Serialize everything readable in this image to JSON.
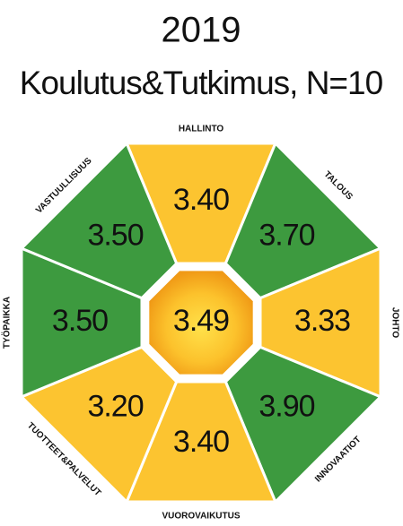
{
  "header": {
    "title": "2019",
    "subtitle": "Koulutus&Tutkimus, N=10"
  },
  "center": {
    "value": "3.49"
  },
  "segments": [
    {
      "label": "HALLINTO",
      "value": "3.40",
      "color": "#fcc430"
    },
    {
      "label": "TALOUS",
      "value": "3.70",
      "color": "#3d9a3f"
    },
    {
      "label": "JOHTO",
      "value": "3.33",
      "color": "#fcc430"
    },
    {
      "label": "INNOVAATIOT",
      "value": "3.90",
      "color": "#3d9a3f"
    },
    {
      "label": "VUOROVAIKUTUS",
      "value": "3.40",
      "color": "#fcc430"
    },
    {
      "label": "TUOTTEET&PALVELUT",
      "value": "3.20",
      "color": "#fcc430"
    },
    {
      "label": "TYÖPAIKKA",
      "value": "3.50",
      "color": "#3d9a3f"
    },
    {
      "label": "VASTUULLISUUS",
      "value": "3.50",
      "color": "#3d9a3f"
    }
  ]
}
